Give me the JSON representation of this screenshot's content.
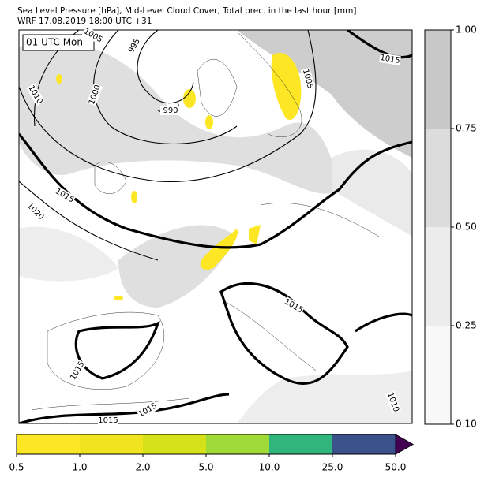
{
  "header": {
    "title": [
      "Sea Level Pressure [hPa], Mid-Level Cloud Cover, Total prec. in the last hour [mm]",
      "WRF 17.08.2019 18:00 UTC +31"
    ]
  },
  "map": {
    "time_label": "01 UTC Mon",
    "contour_labels": [
      "1005",
      "995",
      "1000",
      "990",
      "1010",
      "1015",
      "1020",
      "1005",
      "1015",
      "1015",
      "1015",
      "1015",
      "1015",
      "1010"
    ]
  },
  "cloud_colorbar": {
    "ticks": [
      "1.00",
      "0.75",
      "0.50",
      "0.25",
      "0.10"
    ],
    "colors": [
      "#c8c8c8",
      "#dcdcdc",
      "#ececec",
      "#f8f8f8"
    ]
  },
  "precip_colorbar": {
    "ticks": [
      "0.5",
      "1.0",
      "2.0",
      "5.0",
      "10.0",
      "25.0",
      "50.0"
    ],
    "colors": [
      "#fde725",
      "#efe41e",
      "#d5e21a",
      "#a0da39",
      "#30b57c",
      "#3b518b"
    ],
    "extend_color": "#440154"
  }
}
